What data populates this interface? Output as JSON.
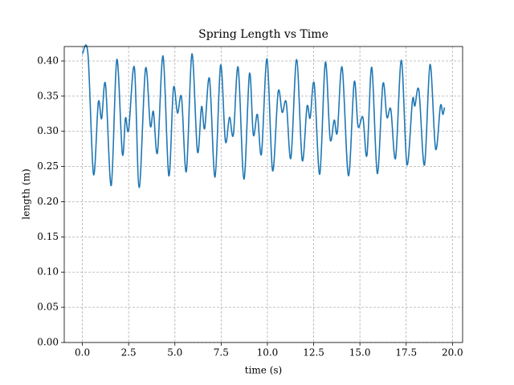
{
  "chart_data": {
    "type": "line",
    "title": "Spring Length vs Time",
    "x_label": "time (s)",
    "y_label": "length (m)",
    "x": [
      0,
      0.3,
      0.6,
      0.86,
      1.04,
      1.25,
      1.56,
      1.86,
      2.16,
      2.33,
      2.5,
      2.81,
      3.07,
      3.41,
      3.67,
      3.84,
      4.06,
      4.36,
      4.67,
      4.92,
      5.14,
      5.36,
      5.62,
      5.92,
      6.22,
      6.44,
      6.61,
      6.87,
      7.17,
      7.47,
      7.73,
      7.95,
      8.16,
      8.42,
      8.73,
      9.03,
      9.24,
      9.46,
      9.68,
      9.98,
      10.28,
      10.58,
      10.8,
      11.02,
      11.27,
      11.58,
      11.88,
      12.14,
      12.31,
      12.53,
      12.83,
      13.13,
      13.39,
      13.61,
      13.78,
      14.04,
      14.38,
      14.69,
      14.9,
      15.16,
      15.38,
      15.64,
      15.94,
      16.24,
      16.46,
      16.67,
      16.93,
      17.24,
      17.54,
      17.84,
      17.97,
      18.19,
      18.49,
      18.79,
      19.09,
      19.35,
      19.48,
      19.57
    ],
    "values": [
      0.41,
      0.41,
      0.239,
      0.341,
      0.318,
      0.367,
      0.223,
      0.402,
      0.268,
      0.319,
      0.302,
      0.391,
      0.22,
      0.389,
      0.308,
      0.328,
      0.27,
      0.407,
      0.237,
      0.361,
      0.326,
      0.348,
      0.243,
      0.41,
      0.271,
      0.335,
      0.304,
      0.375,
      0.235,
      0.394,
      0.286,
      0.32,
      0.295,
      0.391,
      0.232,
      0.382,
      0.295,
      0.324,
      0.268,
      0.403,
      0.244,
      0.356,
      0.327,
      0.341,
      0.262,
      0.402,
      0.259,
      0.335,
      0.319,
      0.368,
      0.239,
      0.398,
      0.289,
      0.316,
      0.299,
      0.391,
      0.237,
      0.37,
      0.307,
      0.32,
      0.266,
      0.391,
      0.24,
      0.367,
      0.32,
      0.331,
      0.262,
      0.401,
      0.253,
      0.344,
      0.336,
      0.358,
      0.252,
      0.395,
      0.275,
      0.336,
      0.324,
      0.334
    ],
    "color": "#1f77b4",
    "xlim": [
      -0.98,
      20.55
    ],
    "ylim": [
      0,
      0.4205
    ],
    "xticks": [
      {
        "value": 0,
        "label": "0.0"
      },
      2.5,
      {
        "value": 5,
        "label": "5.0"
      },
      7.5,
      {
        "value": 10,
        "label": "10.0"
      },
      12.5,
      {
        "value": 15,
        "label": "15.0"
      },
      17.5,
      {
        "value": 20,
        "label": "20.0"
      }
    ],
    "yticks": [
      {
        "value": 0,
        "label": "0.00"
      },
      0.05,
      {
        "value": 0.1,
        "label": "0.10"
      },
      0.15,
      {
        "value": 0.2,
        "label": "0.20"
      },
      0.25,
      {
        "value": 0.3,
        "label": "0.30"
      },
      0.35,
      {
        "value": 0.4,
        "label": "0.40"
      }
    ],
    "grid": true
  }
}
